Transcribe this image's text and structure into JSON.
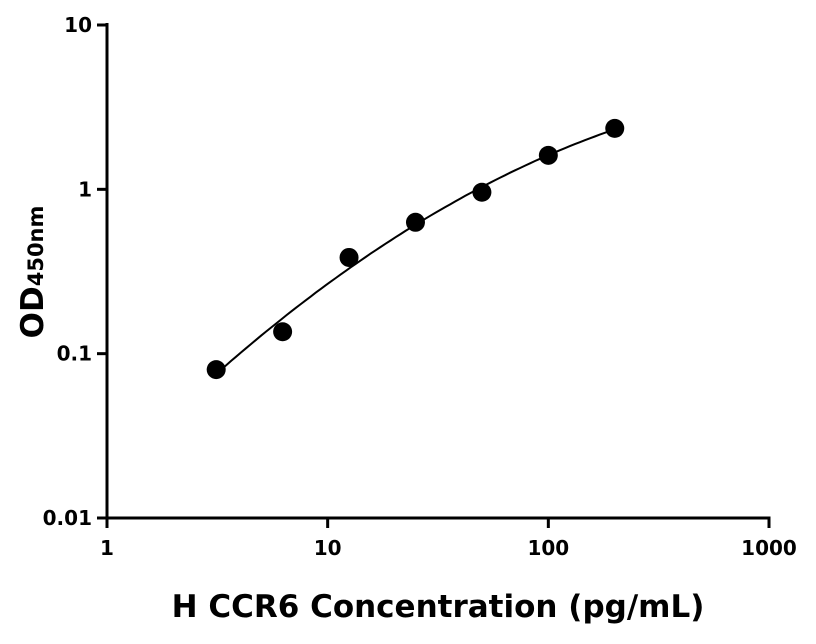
{
  "chart_data": {
    "type": "scatter",
    "title": "",
    "xlabel": "H CCR6 Concentration (pg/mL)",
    "ylabel_main": "OD",
    "ylabel_sub": "450nm",
    "x_scale": "log",
    "y_scale": "log",
    "xlim": [
      1,
      1000
    ],
    "ylim": [
      0.01,
      10
    ],
    "x_ticks": [
      1,
      10,
      100,
      1000
    ],
    "x_tick_labels": [
      "1",
      "10",
      "100",
      "1000"
    ],
    "y_ticks": [
      0.01,
      0.1,
      1,
      10
    ],
    "y_tick_labels": [
      "0.01",
      "0.1",
      "1",
      "10"
    ],
    "grid": false,
    "legend": "none",
    "fit_line": true,
    "marker_color": "#000000",
    "points": [
      {
        "x": 3.125,
        "y": 0.08
      },
      {
        "x": 6.25,
        "y": 0.136
      },
      {
        "x": 12.5,
        "y": 0.385
      },
      {
        "x": 25,
        "y": 0.63
      },
      {
        "x": 50,
        "y": 0.96
      },
      {
        "x": 100,
        "y": 1.61
      },
      {
        "x": 200,
        "y": 2.35
      }
    ]
  }
}
